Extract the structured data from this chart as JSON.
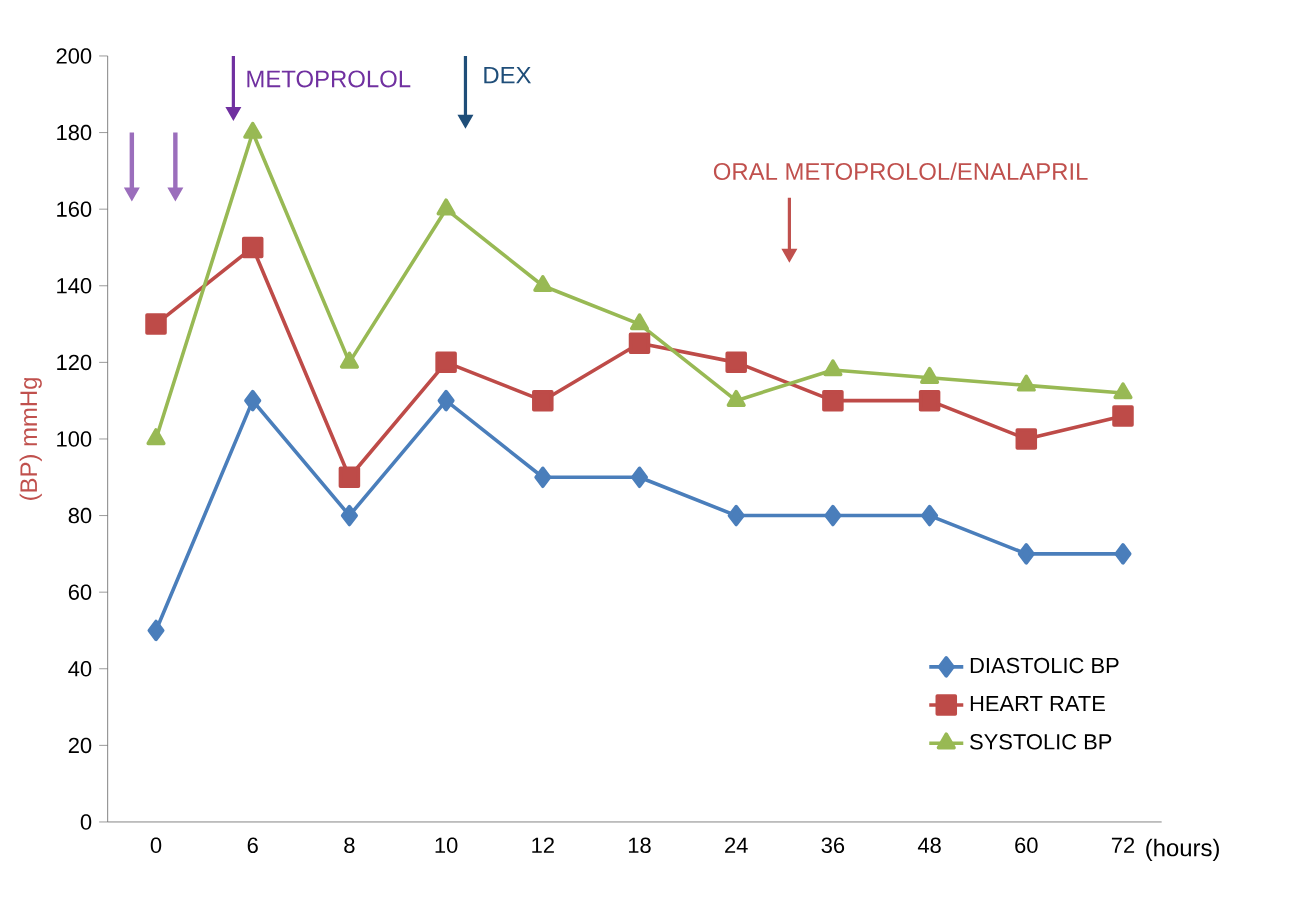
{
  "chart_data": {
    "type": "line",
    "xlabel": "(hours)",
    "ylabel": "(BP) mmHg",
    "categories": [
      "0",
      "6",
      "8",
      "10",
      "12",
      "18",
      "24",
      "36",
      "48",
      "60",
      "72"
    ],
    "series": [
      {
        "name": "DIASTOLIC BP",
        "color": "#4a7ebb",
        "marker": "diamond",
        "values": [
          50,
          110,
          80,
          110,
          90,
          90,
          80,
          80,
          80,
          70,
          70
        ]
      },
      {
        "name": "HEART RATE",
        "color": "#be4b48",
        "marker": "square",
        "values": [
          130,
          150,
          90,
          120,
          110,
          125,
          120,
          110,
          110,
          100,
          106
        ]
      },
      {
        "name": "SYSTOLIC BP",
        "color": "#98b954",
        "marker": "triangle",
        "values": [
          100,
          180,
          120,
          160,
          140,
          130,
          110,
          118,
          116,
          114,
          112
        ]
      }
    ],
    "ylim": [
      0,
      200
    ],
    "yticks": [
      0,
      20,
      40,
      60,
      80,
      100,
      120,
      140,
      160,
      180,
      200
    ],
    "grid": false,
    "legend": "bottom right",
    "annotations": [
      "METOPROLOL",
      "DEX",
      "ORAL METOPROLOL/ENALAPRIL"
    ]
  }
}
